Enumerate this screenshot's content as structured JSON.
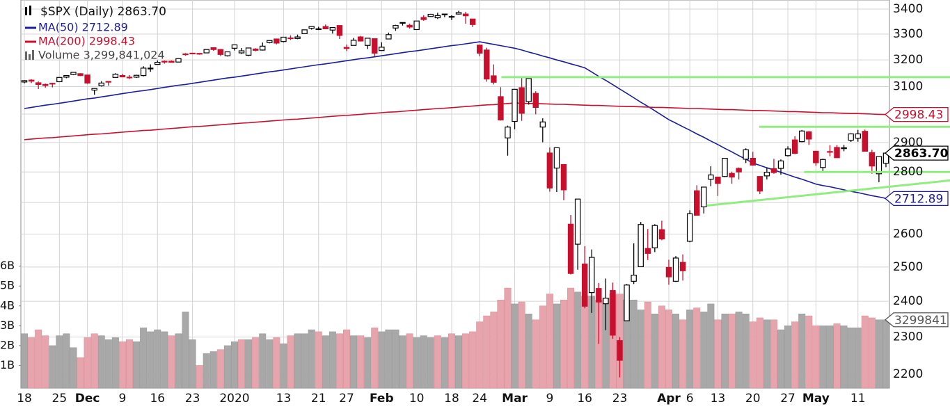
{
  "chart_data": {
    "type": "candlestick",
    "title": "$SPX (Daily) 2863.70",
    "log_scale": true,
    "grid": true,
    "up_color": "#ffffff",
    "down_color": "#c8102e",
    "categories": [
      "18",
      null,
      null,
      null,
      null,
      "25",
      null,
      null,
      null,
      "Dec",
      null,
      null,
      null,
      null,
      "9",
      null,
      null,
      null,
      null,
      "16",
      null,
      null,
      null,
      null,
      "23",
      null,
      null,
      null,
      null,
      null,
      "2020",
      null,
      null,
      null,
      null,
      null,
      null,
      "13",
      null,
      null,
      null,
      null,
      "21",
      null,
      null,
      null,
      "27",
      null,
      null,
      null,
      null,
      "Feb",
      null,
      null,
      null,
      null,
      "10",
      null,
      null,
      null,
      null,
      "18",
      null,
      null,
      null,
      "24",
      null,
      null,
      null,
      null,
      "Mar",
      null,
      null,
      null,
      null,
      "9",
      null,
      null,
      null,
      null,
      "16",
      null,
      null,
      null,
      null,
      "23",
      null,
      null,
      null,
      null,
      null,
      null,
      "Apr",
      null,
      null,
      "6",
      null,
      null,
      null,
      "13",
      null,
      null,
      null,
      null,
      "20",
      null,
      null,
      null,
      null,
      "27",
      null,
      null,
      null,
      "May",
      null,
      null,
      null,
      null,
      null,
      "11",
      null,
      null,
      null,
      null
    ],
    "ohlc": [
      [
        3117,
        3124,
        3112,
        3122
      ],
      [
        3124,
        3127,
        3113,
        3120
      ],
      [
        3114,
        3119,
        3091,
        3108
      ],
      [
        3108,
        3111,
        3096,
        3104
      ],
      [
        3112,
        3114,
        3097,
        3110
      ],
      [
        3118,
        3134,
        3117,
        3134
      ],
      [
        3135,
        3142,
        3131,
        3141
      ],
      [
        3145,
        3154,
        3143,
        3153
      ],
      [
        3148,
        3150,
        3139,
        3141
      ],
      [
        3143,
        3144,
        3110,
        3113
      ],
      [
        3087,
        3094,
        3070,
        3093
      ],
      [
        3103,
        3120,
        3100,
        3113
      ],
      [
        3119,
        3120,
        3103,
        3117
      ],
      [
        3134,
        3150,
        3134,
        3146
      ],
      [
        3141,
        3148,
        3135,
        3136
      ],
      [
        3135,
        3143,
        3128,
        3133
      ],
      [
        3135,
        3144,
        3132,
        3142
      ],
      [
        3141,
        3176,
        3138,
        3169
      ],
      [
        3166,
        3183,
        3155,
        3169
      ],
      [
        3183,
        3198,
        3182,
        3191
      ],
      [
        3195,
        3198,
        3186,
        3192
      ],
      [
        3195,
        3198,
        3191,
        3191
      ],
      [
        3192,
        3206,
        3191,
        3205
      ],
      [
        3223,
        3226,
        3216,
        3221
      ],
      [
        3226,
        3227,
        3222,
        3224
      ],
      [
        3225,
        3226,
        3220,
        3223
      ],
      [
        3227,
        3240,
        3227,
        3240
      ],
      [
        3247,
        3248,
        3235,
        3240
      ],
      [
        3240,
        3241,
        3215,
        3221
      ],
      [
        3216,
        3232,
        3213,
        3231
      ],
      [
        3245,
        3258,
        3236,
        3258
      ],
      [
        3227,
        3246,
        3223,
        3235
      ],
      [
        3218,
        3247,
        3215,
        3246
      ],
      [
        3242,
        3245,
        3233,
        3237
      ],
      [
        3238,
        3267,
        3236,
        3253
      ],
      [
        3267,
        3275,
        3264,
        3275
      ],
      [
        3281,
        3282,
        3260,
        3265
      ],
      [
        3271,
        3288,
        3268,
        3288
      ],
      [
        3285,
        3295,
        3277,
        3283
      ],
      [
        3283,
        3298,
        3280,
        3289
      ],
      [
        3302,
        3317,
        3301,
        3317
      ],
      [
        3323,
        3330,
        3318,
        3330
      ],
      [
        3321,
        3329,
        3316,
        3321
      ],
      [
        3330,
        3338,
        3320,
        3321
      ],
      [
        3316,
        3326,
        3302,
        3326
      ],
      [
        3334,
        3334,
        3281,
        3295
      ],
      [
        3248,
        3259,
        3234,
        3244
      ],
      [
        3256,
        3285,
        3256,
        3276
      ],
      [
        3289,
        3293,
        3271,
        3273
      ],
      [
        3256,
        3285,
        3242,
        3284
      ],
      [
        3282,
        3282,
        3214,
        3226
      ],
      [
        3236,
        3268,
        3236,
        3249
      ],
      [
        3281,
        3306,
        3281,
        3298
      ],
      [
        3324,
        3337,
        3313,
        3334
      ],
      [
        3344,
        3347,
        3334,
        3346
      ],
      [
        3335,
        3341,
        3322,
        3328
      ],
      [
        3318,
        3352,
        3317,
        3352
      ],
      [
        3366,
        3375,
        3353,
        3358
      ],
      [
        3370,
        3381,
        3369,
        3379
      ],
      [
        3365,
        3385,
        3360,
        3374
      ],
      [
        3378,
        3381,
        3367,
        3380
      ],
      [
        3370,
        3375,
        3356,
        3370
      ],
      [
        3380,
        3393,
        3378,
        3386
      ],
      [
        3380,
        3389,
        3341,
        3373
      ],
      [
        3360,
        3360,
        3328,
        3338
      ],
      [
        3257,
        3259,
        3214,
        3226
      ],
      [
        3238,
        3247,
        3118,
        3128
      ],
      [
        3140,
        3183,
        3108,
        3116
      ],
      [
        3063,
        3098,
        2977,
        2979
      ],
      [
        2916,
        2959,
        2855,
        2954
      ],
      [
        2974,
        3091,
        2946,
        3090
      ],
      [
        3096,
        3136,
        2976,
        3003
      ],
      [
        3045,
        3130,
        3034,
        3130
      ],
      [
        3075,
        3083,
        2999,
        3024
      ],
      [
        2954,
        2985,
        2901,
        2972
      ],
      [
        2864,
        2883,
        2735,
        2747
      ],
      [
        2813,
        2882,
        2734,
        2882
      ],
      [
        2825,
        2825,
        2707,
        2741
      ],
      [
        2631,
        2660,
        2478,
        2481
      ],
      [
        2569,
        2711,
        2492,
        2711
      ],
      [
        2509,
        2563,
        2380,
        2386
      ],
      [
        2425,
        2553,
        2367,
        2529
      ],
      [
        2437,
        2453,
        2281,
        2398
      ],
      [
        2393,
        2466,
        2319,
        2409
      ],
      [
        2431,
        2454,
        2295,
        2305
      ],
      [
        2290,
        2300,
        2192,
        2237
      ],
      [
        2345,
        2450,
        2345,
        2447
      ],
      [
        2458,
        2572,
        2450,
        2476
      ],
      [
        2501,
        2638,
        2500,
        2630
      ],
      [
        2556,
        2616,
        2521,
        2541
      ],
      [
        2558,
        2631,
        2545,
        2627
      ],
      [
        2614,
        2642,
        2581,
        2585
      ],
      [
        2499,
        2522,
        2448,
        2471
      ],
      [
        2458,
        2533,
        2456,
        2527
      ],
      [
        2514,
        2538,
        2460,
        2489
      ],
      [
        2578,
        2675,
        2575,
        2664
      ],
      [
        2738,
        2756,
        2658,
        2659
      ],
      [
        2686,
        2750,
        2665,
        2750
      ],
      [
        2776,
        2819,
        2753,
        2790
      ],
      [
        2783,
        2783,
        2721,
        2762
      ],
      [
        2785,
        2846,
        2783,
        2846
      ],
      [
        2795,
        2801,
        2761,
        2783
      ],
      [
        2812,
        2815,
        2775,
        2800
      ],
      [
        2843,
        2880,
        2830,
        2875
      ],
      [
        2846,
        2868,
        2821,
        2823
      ],
      [
        2785,
        2785,
        2727,
        2737
      ],
      [
        2787,
        2815,
        2775,
        2799
      ],
      [
        2811,
        2844,
        2794,
        2798
      ],
      [
        2812,
        2842,
        2791,
        2837
      ],
      [
        2855,
        2887,
        2852,
        2878
      ],
      [
        2909,
        2922,
        2860,
        2863
      ],
      [
        2903,
        2944,
        2901,
        2940
      ],
      [
        2937,
        2940,
        2892,
        2912
      ],
      [
        2870,
        2870,
        2821,
        2831
      ],
      [
        2815,
        2845,
        2798,
        2842
      ],
      [
        2869,
        2891,
        2853,
        2868
      ],
      [
        2883,
        2891,
        2848,
        2848
      ],
      [
        2879,
        2892,
        2870,
        2882
      ],
      [
        2908,
        2932,
        2902,
        2930
      ],
      [
        2915,
        2944,
        2903,
        2930
      ],
      [
        2939,
        2945,
        2869,
        2870
      ],
      [
        2865,
        2875,
        2794,
        2820
      ],
      [
        2794,
        2852,
        2766,
        2852
      ],
      [
        2829,
        2865,
        2816,
        2863.7
      ]
    ],
    "series": [
      {
        "name": "MA(50) 2712.89",
        "color": "#1c1c9c",
        "values": [
          3020,
          3024,
          3028,
          3032,
          3035,
          3039,
          3043,
          3047,
          3051,
          3055,
          3058,
          3062,
          3066,
          3070,
          3074,
          3078,
          3082,
          3085,
          3089,
          3093,
          3097,
          3101,
          3105,
          3108,
          3112,
          3116,
          3120,
          3124,
          3128,
          3132,
          3135,
          3139,
          3143,
          3147,
          3151,
          3155,
          3158,
          3162,
          3166,
          3170,
          3174,
          3178,
          3182,
          3185,
          3189,
          3193,
          3197,
          3201,
          3205,
          3208,
          3212,
          3216,
          3220,
          3224,
          3228,
          3232,
          3235,
          3239,
          3243,
          3247,
          3251,
          3255,
          3258,
          3262,
          3266,
          3270,
          3265,
          3260,
          3255,
          3250,
          3245,
          3238,
          3230,
          3223,
          3215,
          3208,
          3200,
          3193,
          3185,
          3178,
          3170,
          3154,
          3138,
          3123,
          3107,
          3091,
          3075,
          3059,
          3043,
          3028,
          3012,
          2996,
          2980,
          2968,
          2955,
          2943,
          2930,
          2918,
          2905,
          2893,
          2880,
          2868,
          2855,
          2843,
          2830,
          2822,
          2814,
          2807,
          2799,
          2791,
          2783,
          2776,
          2768,
          2760,
          2755,
          2751,
          2746,
          2741,
          2736,
          2732,
          2727,
          2722,
          2718,
          2712.89
        ]
      },
      {
        "name": "MA(200) 2998.43",
        "color": "#c8102e",
        "values": [
          2910,
          2912,
          2914,
          2916,
          2917,
          2919,
          2921,
          2923,
          2925,
          2927,
          2929,
          2930,
          2932,
          2934,
          2936,
          2938,
          2940,
          2942,
          2943,
          2945,
          2947,
          2949,
          2951,
          2953,
          2955,
          2956,
          2958,
          2960,
          2962,
          2964,
          2966,
          2968,
          2969,
          2971,
          2973,
          2975,
          2977,
          2979,
          2981,
          2982,
          2984,
          2986,
          2988,
          2990,
          2992,
          2994,
          2995,
          2997,
          2999,
          3001,
          3003,
          3005,
          3007,
          3008,
          3010,
          3012,
          3014,
          3016,
          3018,
          3020,
          3021,
          3023,
          3025,
          3027,
          3029,
          3031,
          3033,
          3034,
          3036,
          3038,
          3040,
          3039,
          3038,
          3038,
          3037,
          3036,
          3035,
          3035,
          3034,
          3033,
          3032,
          3031,
          3031,
          3030,
          3029,
          3028,
          3027,
          3027,
          3026,
          3025,
          3024,
          3024,
          3023,
          3022,
          3021,
          3020,
          3020,
          3019,
          3018,
          3017,
          3016,
          3016,
          3015,
          3014,
          3013,
          3013,
          3012,
          3011,
          3010,
          3009,
          3009,
          3008,
          3007,
          3006,
          3005,
          3005,
          3004,
          3003,
          3002,
          3002,
          3001,
          3000,
          2999,
          2998.43
        ]
      }
    ],
    "volume": {
      "name": "Volume 3,299,841,024",
      "axis": "y2",
      "color": "#a8a8a8",
      "down_color": "#e8a4ac",
      "values": [
        2.6,
        2.4,
        2.8,
        2.5,
        2.0,
        2.5,
        2.6,
        1.9,
        1.4,
        2.4,
        2.6,
        2.5,
        2.3,
        2.4,
        2.2,
        2.3,
        2.2,
        2.9,
        2.7,
        2.8,
        2.7,
        2.5,
        2.6,
        3.7,
        2.3,
        1.0,
        1.6,
        1.7,
        1.8,
        2.0,
        2.2,
        2.3,
        2.3,
        2.4,
        2.6,
        2.3,
        2.4,
        2.1,
        2.5,
        2.6,
        2.6,
        2.8,
        2.7,
        2.5,
        2.7,
        2.6,
        2.8,
        2.5,
        2.5,
        2.4,
        2.9,
        2.7,
        2.8,
        2.8,
        2.5,
        2.6,
        2.4,
        2.5,
        2.4,
        2.5,
        2.4,
        2.6,
        2.5,
        2.6,
        2.7,
        3.2,
        3.5,
        3.7,
        4.3,
        4.9,
        4.1,
        4.2,
        3.6,
        3.3,
        4.0,
        4.6,
        4.1,
        4.3,
        4.9,
        4.7,
        4.5,
        4.5,
        4.3,
        4.4,
        4.6,
        4.6,
        4.3,
        4.3,
        3.8,
        4.2,
        3.6,
        4.0,
        3.8,
        3.6,
        3.3,
        3.8,
        3.9,
        3.7,
        4.1,
        3.3,
        3.6,
        3.6,
        3.7,
        3.6,
        3.2,
        3.4,
        3.3,
        3.3,
        2.8,
        3.0,
        3.2,
        3.6,
        3.5,
        3.0,
        3.0,
        3.0,
        3.1,
        3.0,
        2.9,
        2.9,
        3.5,
        3.4,
        3.3,
        3.299841024
      ]
    },
    "ylim": [
      2164,
      3437
    ],
    "yticks": [
      2200,
      2300,
      2400,
      2500,
      2600,
      2700,
      2800,
      2900,
      3000,
      3100,
      3200,
      3300,
      3400
    ],
    "y2lim": [
      -0.14,
      19.4
    ],
    "y2ticks": [
      {
        "value": 1,
        "label": "1B"
      },
      {
        "value": 2,
        "label": "2B"
      },
      {
        "value": 3,
        "label": "3B"
      },
      {
        "value": 4,
        "label": "4B"
      },
      {
        "value": 5,
        "label": "5B"
      },
      {
        "value": 6,
        "label": "6B"
      }
    ],
    "badges": [
      {
        "label": "2998.43",
        "value": 2998.43,
        "color": "#c8102e"
      },
      {
        "label": "2863.70",
        "value": 2863.7,
        "color": "#000000"
      },
      {
        "label": "2712.89",
        "value": 2712.89,
        "color": "#1c1c9c"
      },
      {
        "label": "3299841",
        "value": 3.299841024,
        "axis": "y2",
        "color": "#555555"
      }
    ],
    "trendline_color": "#90ee80",
    "trendlines": [
      {
        "start": [
          68.1,
          3135
        ],
        "end": [
          132.2,
          3135
        ]
      },
      {
        "start": [
          104.9,
          2955
        ],
        "end": [
          132.2,
          2955
        ]
      },
      {
        "start": [
          111.3,
          2800
        ],
        "end": [
          132.2,
          2800
        ]
      },
      {
        "start": [
          97.4,
          2690
        ],
        "end": [
          132.2,
          2772
        ]
      }
    ]
  }
}
